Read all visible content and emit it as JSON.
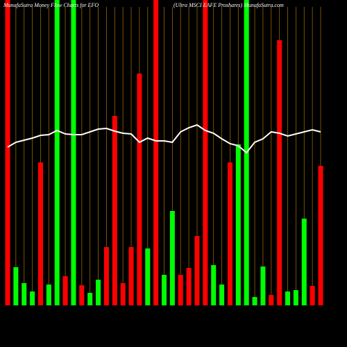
{
  "chart_data": {
    "type": "bar",
    "title": "MunafaSutra  Money Flow  Charts for EFO",
    "subtitle": "(Ultra  MSCI EAFE Proshares) MunafaSutra.com",
    "categories": [
      null,
      null,
      null,
      null,
      null,
      null,
      null,
      null,
      null,
      null,
      null,
      null,
      null,
      null,
      null,
      null,
      null,
      null,
      null,
      null,
      null,
      null,
      null,
      null,
      null,
      null,
      null,
      null,
      null,
      null,
      null,
      null,
      null,
      null,
      null,
      null,
      null,
      null,
      null
    ],
    "values": [
      440,
      55,
      32,
      20,
      206,
      30,
      440,
      42,
      440,
      29,
      18,
      37,
      84,
      273,
      32,
      84,
      334,
      82,
      440,
      44,
      136,
      44,
      54,
      100,
      440,
      58,
      30,
      206,
      232,
      440,
      12,
      56,
      15,
      382,
      20,
      22,
      125,
      28,
      201
    ],
    "bar_colors": [
      "#ff0000",
      "#00ff00",
      "#00ff00",
      "#00ff00",
      "#ff0000",
      "#00ff00",
      "#00ff00",
      "#ff0000",
      "#00ff00",
      "#ff0000",
      "#00ff00",
      "#00ff00",
      "#ff0000",
      "#ff0000",
      "#ff0000",
      "#ff0000",
      "#ff0000",
      "#00ff00",
      "#ff0000",
      "#00ff00",
      "#00ff00",
      "#ff0000",
      "#ff0000",
      "#ff0000",
      "#ff0000",
      "#00ff00",
      "#00ff00",
      "#ff0000",
      "#00ff00",
      "#00ff00",
      "#00ff00",
      "#00ff00",
      "#ff0000",
      "#ff0000",
      "#00ff00",
      "#00ff00",
      "#00ff00",
      "#ff0000",
      "#ff0000"
    ],
    "line_values": [
      228,
      235,
      238,
      241,
      245,
      246,
      252,
      247,
      246,
      246,
      250,
      254,
      255,
      251,
      248,
      247,
      235,
      241,
      237,
      237,
      235,
      250,
      256,
      260,
      252,
      248,
      240,
      233,
      230,
      220,
      235,
      240,
      250,
      248,
      244,
      247,
      250,
      253,
      250
    ],
    "line_color": "#ffffff",
    "ylim": [
      0,
      440
    ]
  }
}
